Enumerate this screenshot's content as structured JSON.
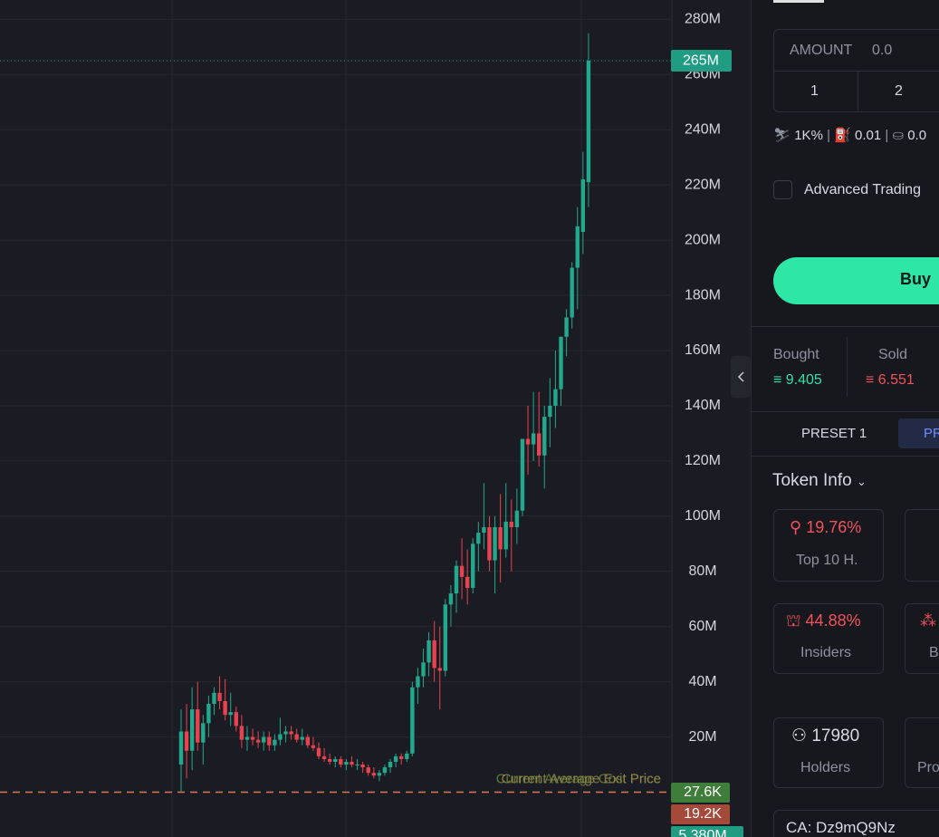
{
  "chart_data": {
    "type": "candlestick",
    "ylim": [
      -10,
      287
    ],
    "yticks": [
      {
        "value": 20,
        "label": "20M"
      },
      {
        "value": 40,
        "label": "40M"
      },
      {
        "value": 60,
        "label": "60M"
      },
      {
        "value": 80,
        "label": "80M"
      },
      {
        "value": 100,
        "label": "100M"
      },
      {
        "value": 120,
        "label": "120M"
      },
      {
        "value": 140,
        "label": "140M"
      },
      {
        "value": 160,
        "label": "160M"
      },
      {
        "value": 180,
        "label": "180M"
      },
      {
        "value": 200,
        "label": "200M"
      },
      {
        "value": 220,
        "label": "220M"
      },
      {
        "value": 240,
        "label": "240M"
      },
      {
        "value": 260,
        "label": "260M"
      },
      {
        "value": 280,
        "label": "280M"
      }
    ],
    "grid": true,
    "up_color": "#22a88c",
    "down_color": "#e8424f",
    "last_price": {
      "value": 265,
      "label": "265M"
    },
    "average_price": 0,
    "average_price_labels": [
      "Current Average Cost Price",
      "Current Average Exit Price"
    ],
    "volume_labels": [
      "27.6K",
      "19.2K",
      "5.380M"
    ],
    "open": [
      10,
      22,
      15,
      30,
      18,
      25,
      32,
      36,
      33,
      28,
      29,
      24,
      19,
      20,
      19,
      18,
      20,
      17,
      19,
      21,
      22,
      21,
      19,
      20,
      17,
      16,
      13,
      12,
      11,
      12,
      10,
      11,
      10,
      10,
      9,
      7,
      6,
      7,
      9,
      11,
      13,
      12,
      14,
      38,
      42,
      47,
      55,
      45,
      44,
      68,
      72,
      82,
      78,
      74,
      90,
      94,
      96,
      84,
      96,
      88,
      98,
      96,
      102,
      128,
      126,
      130,
      122,
      136,
      140,
      146,
      165,
      172,
      190,
      203,
      221
    ],
    "high": [
      30,
      32,
      38,
      40,
      28,
      35,
      38,
      42,
      41,
      36,
      31,
      28,
      24,
      23,
      22,
      22,
      22,
      21,
      27,
      24,
      24,
      23,
      23,
      21,
      20,
      18,
      16,
      14,
      13,
      13,
      12,
      13,
      12,
      11,
      10,
      9,
      8,
      10,
      12,
      14,
      14,
      15,
      40,
      45,
      52,
      58,
      62,
      60,
      70,
      75,
      84,
      92,
      88,
      92,
      98,
      112,
      100,
      100,
      108,
      112,
      106,
      110,
      128,
      140,
      145,
      145,
      140,
      150,
      160,
      165,
      175,
      192,
      212,
      232,
      275
    ],
    "low": [
      0,
      5,
      8,
      15,
      10,
      20,
      28,
      30,
      26,
      24,
      22,
      16,
      15,
      17,
      16,
      15,
      15,
      15,
      17,
      18,
      19,
      18,
      17,
      16,
      15,
      12,
      11,
      10,
      9,
      9,
      8,
      9,
      8,
      7,
      6,
      5,
      4,
      6,
      7,
      9,
      10,
      11,
      13,
      32,
      38,
      42,
      40,
      30,
      42,
      60,
      65,
      70,
      68,
      72,
      80,
      88,
      80,
      72,
      76,
      85,
      80,
      90,
      100,
      115,
      120,
      118,
      110,
      125,
      132,
      140,
      158,
      168,
      175,
      195,
      212
    ],
    "close": [
      22,
      15,
      30,
      18,
      25,
      32,
      36,
      33,
      28,
      29,
      24,
      19,
      20,
      19,
      18,
      20,
      17,
      19,
      21,
      22,
      21,
      19,
      20,
      17,
      16,
      13,
      12,
      11,
      12,
      10,
      11,
      10,
      10,
      9,
      7,
      6,
      7,
      9,
      11,
      13,
      12,
      14,
      38,
      42,
      47,
      55,
      45,
      44,
      68,
      72,
      82,
      78,
      74,
      90,
      94,
      96,
      84,
      96,
      88,
      98,
      96,
      102,
      128,
      126,
      130,
      122,
      136,
      140,
      146,
      165,
      172,
      190,
      205,
      222,
      265
    ]
  },
  "panel": {
    "amount_label": "AMOUNT",
    "amount_value": "0.0",
    "presets": [
      "1",
      "2"
    ],
    "slippage": "1K%",
    "priority_fee": "0.01",
    "bribe": "0.0",
    "advanced_trading": "Advanced Trading",
    "buy_button": "Buy",
    "bought_label": "Bought",
    "bought_value": "9.405",
    "sold_label": "Sold",
    "sold_value": "6.551",
    "preset_tabs": [
      "PRESET 1",
      "PR"
    ],
    "token_info": "Token Info",
    "stats": [
      {
        "value": "19.76%",
        "label": "Top 10 H."
      },
      {
        "value": "44.88%",
        "label": "Insiders"
      },
      {
        "value": "17980",
        "label": "Holders"
      }
    ],
    "stats_partial": [
      "B",
      "Pro"
    ],
    "ca": "CA: Dz9mQ9Nz"
  }
}
